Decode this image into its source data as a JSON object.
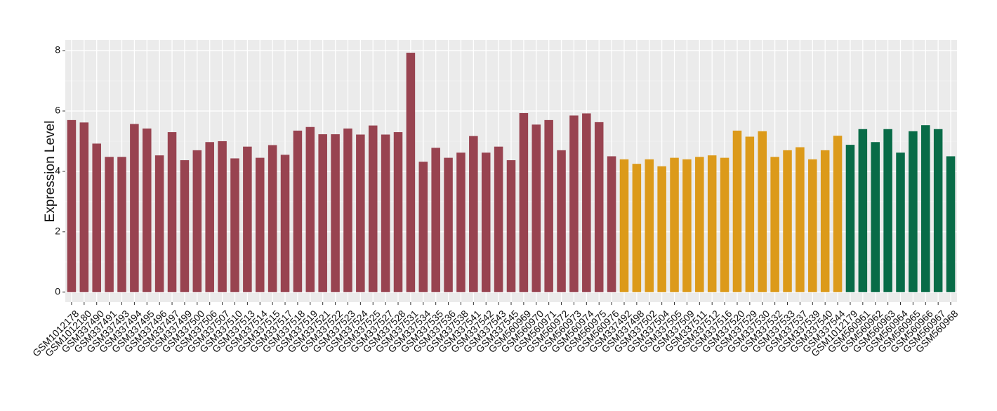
{
  "chart_data": {
    "type": "bar",
    "ylabel": "Expression Level",
    "categories": [
      "GSM1012178",
      "GSM1012180",
      "GSM337490",
      "GSM337491",
      "GSM337493",
      "GSM337494",
      "GSM337495",
      "GSM337496",
      "GSM337497",
      "GSM337499",
      "GSM337500",
      "GSM337506",
      "GSM337507",
      "GSM337510",
      "GSM337513",
      "GSM337514",
      "GSM337515",
      "GSM337517",
      "GSM337518",
      "GSM337519",
      "GSM337521",
      "GSM337522",
      "GSM337523",
      "GSM337524",
      "GSM337525",
      "GSM337527",
      "GSM337528",
      "GSM337531",
      "GSM337534",
      "GSM337535",
      "GSM337536",
      "GSM337538",
      "GSM337541",
      "GSM337542",
      "GSM337543",
      "GSM337545",
      "GSM560969",
      "GSM560970",
      "GSM560971",
      "GSM560972",
      "GSM560973",
      "GSM560974",
      "GSM560975",
      "GSM560976",
      "GSM337492",
      "GSM337498",
      "GSM337502",
      "GSM337504",
      "GSM337505",
      "GSM337509",
      "GSM337511",
      "GSM337512",
      "GSM337516",
      "GSM337520",
      "GSM337529",
      "GSM337530",
      "GSM337532",
      "GSM337533",
      "GSM337537",
      "GSM337539",
      "GSM337540",
      "GSM337544",
      "GSM1012179",
      "GSM560961",
      "GSM560962",
      "GSM560963",
      "GSM560964",
      "GSM560965",
      "GSM560966",
      "GSM560967",
      "GSM560968"
    ],
    "values": [
      5.7,
      5.62,
      4.92,
      4.48,
      4.48,
      5.57,
      5.42,
      4.53,
      5.3,
      4.37,
      4.7,
      4.97,
      5.0,
      4.43,
      4.82,
      4.45,
      4.87,
      4.55,
      5.35,
      5.47,
      5.23,
      5.23,
      5.42,
      5.22,
      5.52,
      5.22,
      5.3,
      7.93,
      4.32,
      4.78,
      4.45,
      4.62,
      5.17,
      4.62,
      4.82,
      4.37,
      5.93,
      5.55,
      5.7,
      4.7,
      5.85,
      5.92,
      5.63,
      4.5,
      4.4,
      4.25,
      4.4,
      4.17,
      4.45,
      4.4,
      4.48,
      4.53,
      4.45,
      5.35,
      5.15,
      5.33,
      4.48,
      4.7,
      4.8,
      4.4,
      4.7,
      5.18,
      4.88,
      5.4,
      4.97,
      5.4,
      4.62,
      5.33,
      5.53,
      5.4,
      4.5
    ],
    "colors": [
      "#984350",
      "#984350",
      "#984350",
      "#984350",
      "#984350",
      "#984350",
      "#984350",
      "#984350",
      "#984350",
      "#984350",
      "#984350",
      "#984350",
      "#984350",
      "#984350",
      "#984350",
      "#984350",
      "#984350",
      "#984350",
      "#984350",
      "#984350",
      "#984350",
      "#984350",
      "#984350",
      "#984350",
      "#984350",
      "#984350",
      "#984350",
      "#984350",
      "#984350",
      "#984350",
      "#984350",
      "#984350",
      "#984350",
      "#984350",
      "#984350",
      "#984350",
      "#984350",
      "#984350",
      "#984350",
      "#984350",
      "#984350",
      "#984350",
      "#984350",
      "#984350",
      "#dc9a1a",
      "#dc9a1a",
      "#dc9a1a",
      "#dc9a1a",
      "#dc9a1a",
      "#dc9a1a",
      "#dc9a1a",
      "#dc9a1a",
      "#dc9a1a",
      "#dc9a1a",
      "#dc9a1a",
      "#dc9a1a",
      "#dc9a1a",
      "#dc9a1a",
      "#dc9a1a",
      "#dc9a1a",
      "#dc9a1a",
      "#dc9a1a",
      "#086b47",
      "#086b47",
      "#086b47",
      "#086b47",
      "#086b47",
      "#086b47",
      "#086b47",
      "#086b47",
      "#086b47"
    ],
    "ylim": [
      -0.33,
      8.35
    ],
    "yticks": [
      0,
      2,
      4,
      6,
      8
    ],
    "grid": true
  }
}
